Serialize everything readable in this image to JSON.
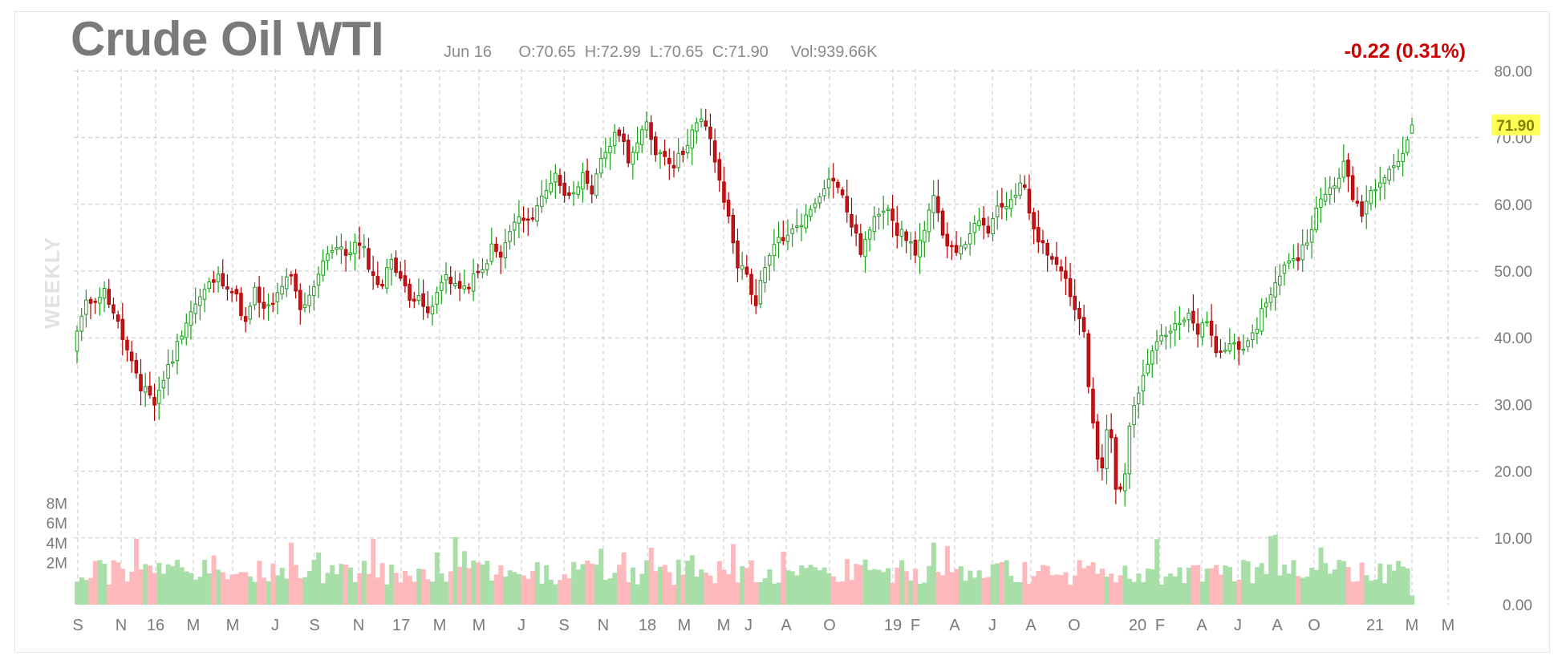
{
  "header": {
    "title": "Crude Oil WTI",
    "date": "Jun 16",
    "open": "O:70.65",
    "high": "H:72.99",
    "low": "L:70.65",
    "close": "C:71.90",
    "volume": "Vol:939.66K",
    "change": "-0.22 (0.31%)",
    "period_label": "WEEKLY"
  },
  "colors": {
    "up": "#1a9e1a",
    "up_fill": "#ffffff",
    "down": "#b00000",
    "down_fill": "#c4151b",
    "vol_up": "#a8dfa8",
    "vol_down": "#ffb8bc",
    "change_text": "#cc0000",
    "last_price_bg": "#ffff55",
    "grid": "#c8c8c8"
  },
  "chart_data": {
    "type": "candlestick",
    "title": "Crude Oil WTI",
    "interval": "WEEKLY",
    "ylim": [
      0,
      80
    ],
    "y_ticks": [
      "0.00",
      "10.00",
      "20.00",
      "30.00",
      "40.00",
      "50.00",
      "60.00",
      "70.00",
      "80.00"
    ],
    "volume_ticks": [
      "2M",
      "4M",
      "6M",
      "8M"
    ],
    "x_ticks": [
      "S",
      "N",
      "16",
      "M",
      "M",
      "J",
      "S",
      "N",
      "17",
      "M",
      "M",
      "J",
      "S",
      "N",
      "18",
      "M",
      "M",
      "J",
      "A",
      "O",
      "19",
      "F",
      "A",
      "J",
      "A",
      "O",
      "20",
      "F",
      "A",
      "J",
      "A",
      "O",
      "21",
      "M",
      "M"
    ],
    "last_price": "71.90",
    "close_anchors": [
      [
        0,
        41
      ],
      [
        2,
        45
      ],
      [
        4,
        46
      ],
      [
        6,
        47
      ],
      [
        8,
        44
      ],
      [
        10,
        40
      ],
      [
        12,
        36
      ],
      [
        14,
        32
      ],
      [
        15,
        33
      ],
      [
        17,
        30
      ],
      [
        19,
        34
      ],
      [
        21,
        37
      ],
      [
        23,
        41
      ],
      [
        25,
        44
      ],
      [
        27,
        46
      ],
      [
        29,
        48
      ],
      [
        31,
        49
      ],
      [
        33,
        48
      ],
      [
        35,
        46
      ],
      [
        37,
        42
      ],
      [
        39,
        47
      ],
      [
        41,
        44
      ],
      [
        43,
        45
      ],
      [
        45,
        48
      ],
      [
        47,
        49
      ],
      [
        49,
        44
      ],
      [
        51,
        46
      ],
      [
        53,
        50
      ],
      [
        55,
        53
      ],
      [
        57,
        53.5
      ],
      [
        59,
        52.5
      ],
      [
        61,
        54
      ],
      [
        63,
        53
      ],
      [
        65,
        49
      ],
      [
        67,
        48
      ],
      [
        69,
        52
      ],
      [
        71,
        49
      ],
      [
        73,
        45.5
      ],
      [
        75,
        47
      ],
      [
        77,
        43
      ],
      [
        79,
        46.5
      ],
      [
        81,
        49.5
      ],
      [
        83,
        48
      ],
      [
        85,
        47
      ],
      [
        87,
        49
      ],
      [
        89,
        50
      ],
      [
        91,
        53.5
      ],
      [
        93,
        52
      ],
      [
        95,
        56
      ],
      [
        97,
        58
      ],
      [
        99,
        57
      ],
      [
        101,
        60
      ],
      [
        103,
        62
      ],
      [
        105,
        65
      ],
      [
        107,
        61
      ],
      [
        109,
        62.5
      ],
      [
        111,
        64
      ],
      [
        113,
        61
      ],
      [
        115,
        67
      ],
      [
        117,
        69
      ],
      [
        119,
        71
      ],
      [
        121,
        67
      ],
      [
        123,
        69
      ],
      [
        125,
        72
      ],
      [
        127,
        68
      ],
      [
        129,
        67.5
      ],
      [
        131,
        66
      ],
      [
        133,
        68
      ],
      [
        135,
        71
      ],
      [
        137,
        72.5
      ],
      [
        139,
        70
      ],
      [
        141,
        63
      ],
      [
        143,
        58
      ],
      [
        145,
        51
      ],
      [
        147,
        49.5
      ],
      [
        148,
        47
      ],
      [
        149,
        45
      ],
      [
        150,
        48
      ],
      [
        152,
        52
      ],
      [
        154,
        55
      ],
      [
        156,
        55
      ],
      [
        158,
        57
      ],
      [
        160,
        58
      ],
      [
        162,
        60.5
      ],
      [
        164,
        63
      ],
      [
        166,
        64
      ],
      [
        168,
        61
      ],
      [
        170,
        57
      ],
      [
        172,
        53
      ],
      [
        174,
        56
      ],
      [
        176,
        59
      ],
      [
        178,
        60
      ],
      [
        180,
        56
      ],
      [
        182,
        55
      ],
      [
        184,
        53
      ],
      [
        186,
        56
      ],
      [
        188,
        61
      ],
      [
        190,
        55
      ],
      [
        192,
        54
      ],
      [
        194,
        53
      ],
      [
        196,
        56
      ],
      [
        198,
        57
      ],
      [
        200,
        56
      ],
      [
        202,
        59
      ],
      [
        204,
        60
      ],
      [
        206,
        62
      ],
      [
        208,
        63
      ],
      [
        209,
        59
      ],
      [
        211,
        55
      ],
      [
        213,
        53
      ],
      [
        215,
        51
      ],
      [
        217,
        49
      ],
      [
        219,
        44
      ],
      [
        221,
        41
      ],
      [
        222,
        32
      ],
      [
        224,
        22
      ],
      [
        225,
        20
      ],
      [
        226,
        26
      ],
      [
        227,
        25
      ],
      [
        228,
        17
      ],
      [
        229,
        18
      ],
      [
        230,
        20
      ],
      [
        231,
        26
      ],
      [
        232,
        30
      ],
      [
        234,
        35
      ],
      [
        236,
        38.5
      ],
      [
        238,
        40.5
      ],
      [
        240,
        41
      ],
      [
        242,
        42
      ],
      [
        244,
        43
      ],
      [
        246,
        41
      ],
      [
        248,
        42
      ],
      [
        250,
        38
      ],
      [
        252,
        38
      ],
      [
        254,
        40
      ],
      [
        256,
        37.5
      ],
      [
        258,
        40
      ],
      [
        260,
        44
      ],
      [
        262,
        47
      ],
      [
        264,
        49
      ],
      [
        266,
        52
      ],
      [
        268,
        52
      ],
      [
        270,
        55
      ],
      [
        272,
        59
      ],
      [
        274,
        61.5
      ],
      [
        276,
        63
      ],
      [
        278,
        66
      ],
      [
        280,
        61
      ],
      [
        282,
        59
      ],
      [
        284,
        62
      ],
      [
        286,
        64
      ],
      [
        288,
        65.5
      ],
      [
        290,
        66.5
      ],
      [
        292,
        69
      ],
      [
        293,
        71.9
      ]
    ]
  }
}
